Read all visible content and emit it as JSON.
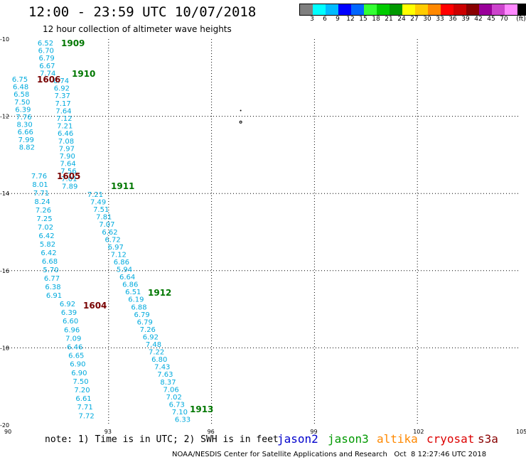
{
  "header": {
    "title": "12:00 - 23:59 UTC 10/07/2018",
    "subtitle": "12 hour collection of altimeter wave heights"
  },
  "legend": {
    "unit": "(ft)",
    "colors": [
      "#7f7f7f",
      "#00ffff",
      "#00bbff",
      "#0000ff",
      "#0066ff",
      "#33ff33",
      "#00cc00",
      "#009900",
      "#ffff00",
      "#ffcc00",
      "#ff8800",
      "#ff0000",
      "#cc0000",
      "#880000",
      "#990099",
      "#cc44cc",
      "#ff88ff",
      "#000000"
    ],
    "labels": [
      "3",
      "6",
      "9",
      "12",
      "15",
      "18",
      "21",
      "24",
      "27",
      "30",
      "33",
      "36",
      "39",
      "42",
      "45",
      "70"
    ]
  },
  "map": {
    "lat_labels": [
      "-10",
      "-12",
      "-14",
      "-16",
      "-18",
      "-20"
    ],
    "lon_labels": [
      "90",
      "93",
      "96",
      "99",
      "102",
      "105"
    ],
    "track_color": "#00aadd"
  },
  "tracks": [
    {
      "id": "1909",
      "color": "#007700",
      "values": [
        "6.52",
        "6.70",
        "6.79",
        "6.67",
        "7.74"
      ]
    },
    {
      "id": "1910",
      "color": "#007700",
      "values": [
        "6.74",
        "6.92",
        "7.37",
        "7.17",
        "7.64",
        "7.12",
        "7.21",
        "6.46",
        "7.08",
        "7.97",
        "7.90",
        "7.64",
        "7.56",
        "7.01",
        "7.89"
      ]
    },
    {
      "id": "1606",
      "color": "#770000",
      "values": [
        "6.75",
        "6.48",
        "6.58",
        "7.50",
        "6.39",
        "7.76",
        "8.30",
        "6.66",
        "7.99",
        "8.82"
      ]
    },
    {
      "id": "1605",
      "color": "#770000",
      "values": [
        "7.76",
        "8.01",
        "7.71",
        "8.24",
        "7.26",
        "7.25",
        "7.02",
        "6.42",
        "5.82",
        "6.42",
        "6.68",
        "5.70",
        "6.77",
        "6.38",
        "6.91"
      ]
    },
    {
      "id": "1911",
      "color": "#007700",
      "values": [
        "7.21",
        "7.49",
        "7.51",
        "7.81",
        "7.07",
        "6.62",
        "6.72",
        "6.97",
        "7.12",
        "6.86",
        "5.94",
        "6.64",
        "6.86",
        "6.51",
        "6.19",
        "6.88",
        "6.79",
        "6.79",
        "7.26",
        "6.92",
        "7.48",
        "7.22",
        "6.80",
        "7.43",
        "7.63",
        "8.37",
        "7.06",
        "7.02",
        "6.73",
        "7.10",
        "6.33"
      ]
    },
    {
      "id": "1912",
      "color": "#007700",
      "values": []
    },
    {
      "id": "1604",
      "color": "#770000",
      "values": [
        "6.92",
        "6.39",
        "6.60",
        "6.96",
        "7.09",
        "6.46",
        "6.65",
        "6.90",
        "6.90",
        "7.50",
        "7.20",
        "6.61",
        "7.71",
        "7.72"
      ]
    },
    {
      "id": "1913",
      "color": "#007700",
      "values": []
    }
  ],
  "footer": {
    "note": "note: 1) Time is in UTC; 2) SWH is in feet",
    "satellites": [
      {
        "name": "jason2",
        "color": "#0000cc"
      },
      {
        "name": "jason3",
        "color": "#009900"
      },
      {
        "name": "altika",
        "color": "#ff8800"
      },
      {
        "name": "cryosat",
        "color": "#dd0000"
      },
      {
        "name": "s3a",
        "color": "#880000"
      }
    ],
    "credit": "NOAA/NESDIS Center for Satellite Applications and Research   Oct  8 12:27:46 UTC 2018"
  }
}
